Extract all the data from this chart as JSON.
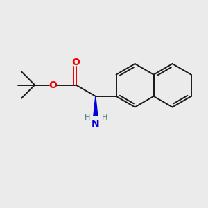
{
  "bg_color": "#ebebeb",
  "bond_color": "#1a1a1a",
  "O_color": "#ee0000",
  "N_color": "#0000dd",
  "H_color": "#408080",
  "line_width": 1.4,
  "fig_size": [
    3.0,
    3.0
  ],
  "dpi": 100,
  "xlim": [
    0,
    10
  ],
  "ylim": [
    0,
    10
  ]
}
